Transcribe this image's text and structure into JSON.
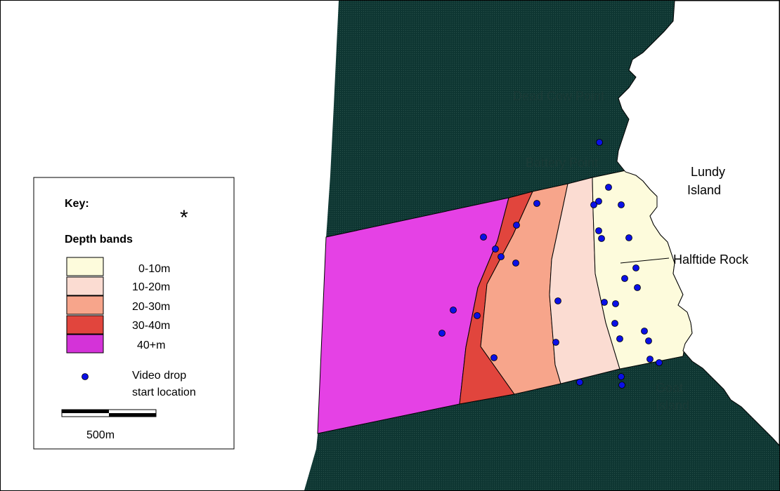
{
  "colors": {
    "sea_dark": "#0e3632",
    "band_0_10": "#fdfbdc",
    "band_10_20": "#fbdcd2",
    "band_20_30": "#f7a58b",
    "band_30_40": "#e1453d",
    "band_40_plus": "#e541e5",
    "video_drop": "#0a10e6"
  },
  "place_labels": {
    "dead_cow_point": "Dead Cow Point",
    "battery_point": "Battery Point",
    "lundy_island_line1": "Lundy",
    "lundy_island_line2": "Island",
    "halftide_rock": "Halftide Rock",
    "goat_island_line1": "Goat",
    "goat_island_line2": "Island"
  },
  "key": {
    "title": "Key:",
    "asterisk": "*",
    "depth_bands_title": "Depth bands",
    "bands": [
      "0-10m",
      "10-20m",
      "20-30m",
      "30-40m",
      "40+m"
    ],
    "video_drop_line1": "Video drop",
    "video_drop_line2": "start location",
    "scale_label": "500m"
  }
}
